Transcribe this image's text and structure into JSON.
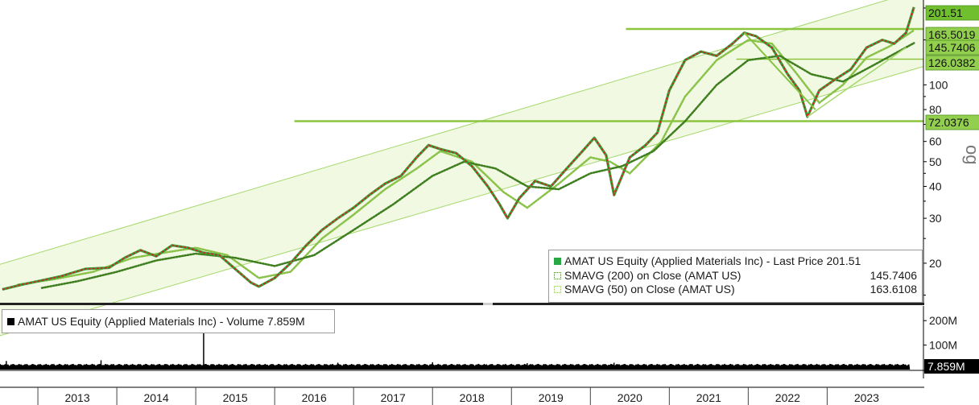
{
  "chart_data": {
    "type": "line",
    "title": "",
    "y_scale": "log",
    "ylim": [
      14,
      215
    ],
    "y_ticks": [
      "20",
      "30",
      "40",
      "50",
      "60",
      "80",
      "100"
    ],
    "x_ticks": [
      "2013",
      "2014",
      "2015",
      "2016",
      "2017",
      "2018",
      "2019",
      "2020",
      "2021",
      "2022",
      "2023"
    ],
    "series": [
      {
        "name": "AMAT US Equity (Applied Materials Inc) - Last Price",
        "color": "#d42020",
        "x": [
          2012.55,
          2012.8,
          2013.0,
          2013.3,
          2013.6,
          2013.9,
          2014.1,
          2014.3,
          2014.5,
          2014.7,
          2014.9,
          2015.1,
          2015.3,
          2015.5,
          2015.7,
          2015.8,
          2016.0,
          2016.2,
          2016.4,
          2016.6,
          2016.8,
          2017.0,
          2017.2,
          2017.4,
          2017.6,
          2017.8,
          2017.95,
          2018.1,
          2018.3,
          2018.5,
          2018.7,
          2018.85,
          2018.95,
          2019.1,
          2019.3,
          2019.5,
          2019.7,
          2019.9,
          2020.05,
          2020.2,
          2020.3,
          2020.5,
          2020.7,
          2020.85,
          2021.0,
          2021.2,
          2021.4,
          2021.6,
          2021.8,
          2021.95,
          2022.1,
          2022.3,
          2022.5,
          2022.65,
          2022.75,
          2022.9,
          2023.1,
          2023.3,
          2023.5,
          2023.7,
          2023.85,
          2024.0,
          2024.1
        ],
        "y": [
          15.8,
          16.5,
          17.0,
          17.8,
          19.0,
          19.2,
          21.0,
          22.5,
          21.3,
          23.5,
          23.0,
          22.0,
          21.5,
          19.0,
          16.8,
          16.2,
          17.5,
          20.0,
          23.5,
          27.0,
          30.0,
          33.0,
          37.0,
          41.0,
          44.0,
          52.0,
          58.0,
          56.0,
          54.0,
          48.0,
          40.0,
          34.0,
          30.0,
          36.0,
          42.0,
          40.0,
          47.0,
          55.0,
          62.0,
          53.0,
          37.0,
          52.0,
          58.0,
          65.0,
          95.0,
          125.0,
          135.0,
          130.0,
          145.0,
          160.0,
          155.0,
          140.0,
          110.0,
          95.0,
          75.0,
          95.0,
          105.0,
          115.0,
          140.0,
          150.0,
          145.0,
          160.0,
          201.51
        ]
      },
      {
        "name": "SMAVG (200) on Close (AMAT US)",
        "color": "#3f7f1f",
        "x": [
          2013.05,
          2013.5,
          2014.0,
          2014.5,
          2015.0,
          2015.5,
          2016.0,
          2016.5,
          2017.0,
          2017.5,
          2018.0,
          2018.4,
          2018.8,
          2019.2,
          2019.6,
          2020.0,
          2020.4,
          2020.8,
          2021.2,
          2021.6,
          2022.0,
          2022.4,
          2022.8,
          2023.2,
          2023.6,
          2024.1
        ],
        "y": [
          16.0,
          17.0,
          18.5,
          20.5,
          21.8,
          21.0,
          19.5,
          21.5,
          27.0,
          34.0,
          44.0,
          50.0,
          47.0,
          40.0,
          39.0,
          45.0,
          48.0,
          55.0,
          72.0,
          100.0,
          125.0,
          130.0,
          110.0,
          103.0,
          120.0,
          145.7406
        ]
      },
      {
        "name": "SMAVG (50) on Close (AMAT US)",
        "color": "#8bc34a",
        "x": [
          2012.75,
          2013.2,
          2013.7,
          2014.2,
          2014.6,
          2015.0,
          2015.4,
          2015.8,
          2016.2,
          2016.6,
          2017.0,
          2017.4,
          2017.8,
          2018.1,
          2018.5,
          2018.9,
          2019.2,
          2019.6,
          2020.0,
          2020.25,
          2020.5,
          2020.9,
          2021.2,
          2021.6,
          2022.0,
          2022.3,
          2022.6,
          2022.9,
          2023.2,
          2023.5,
          2023.8,
          2024.1
        ],
        "y": [
          16.5,
          17.3,
          18.5,
          21.0,
          22.0,
          23.0,
          21.5,
          17.5,
          18.5,
          25.0,
          31.0,
          39.0,
          47.0,
          55.0,
          50.0,
          38.0,
          33.0,
          41.0,
          52.0,
          50.0,
          45.0,
          60.0,
          90.0,
          125.0,
          150.0,
          145.0,
          112.0,
          85.0,
          100.0,
          128.0,
          142.0,
          163.6108
        ]
      }
    ],
    "price_labels": [
      "201.51",
      "165.5019",
      "145.7406",
      "126.0382",
      "72.0376"
    ],
    "level_lines": [
      165.5019,
      126.0382,
      72.0376
    ],
    "volume": {
      "ylabel_ticks": [
        "200M",
        "100M"
      ],
      "last": "7.859M",
      "ylim": [
        0,
        260
      ],
      "spikes": [
        [
          2012.6,
          35
        ],
        [
          2013.8,
          38
        ],
        [
          2015.1,
          155
        ],
        [
          2016.8,
          28
        ],
        [
          2018.0,
          30
        ],
        [
          2019.2,
          26
        ],
        [
          2020.3,
          28
        ]
      ]
    },
    "legend_main": {
      "rows": [
        {
          "label": "AMAT US Equity (Applied Materials Inc) - Last Price 201.51",
          "value": ""
        },
        {
          "label": "SMAVG (200)  on Close (AMAT US)",
          "value": "145.7406"
        },
        {
          "label": "SMAVG (50)  on Close (AMAT US)",
          "value": "163.6108"
        }
      ]
    },
    "legend_volume": "AMAT US Equity (Applied Materials Inc) - Volume 7.859M",
    "colors": {
      "channel_fill": "#f1f9e3",
      "channel_line": "#a5d86b",
      "level_line": "#8cc63f",
      "label_bg": "#93cf4f",
      "last_label_bg": "#6fbf2e",
      "volume_bar": "#000000"
    },
    "side_label": "og"
  }
}
